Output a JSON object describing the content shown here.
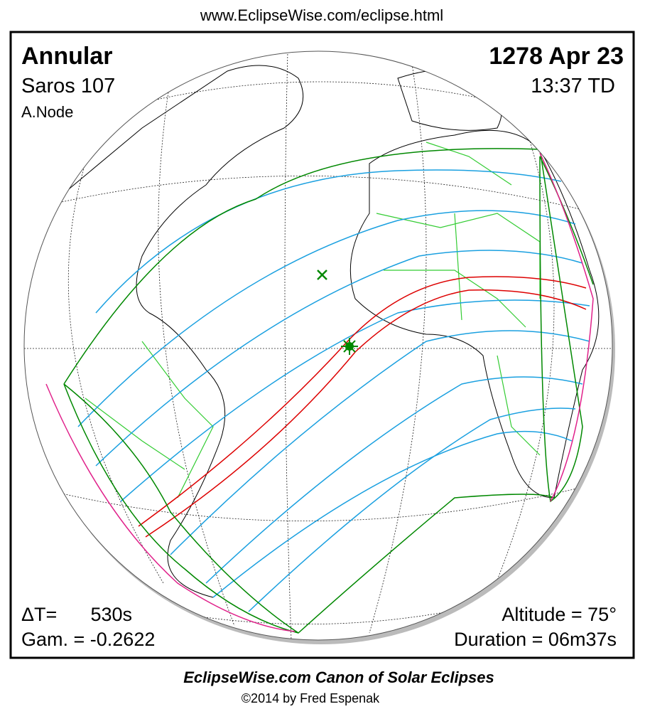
{
  "header": {
    "url": "www.EclipseWise.com/eclipse.html"
  },
  "info": {
    "eclipse_type": "Annular",
    "saros": "Saros 107",
    "node": "A.Node",
    "date": "1278 Apr 23",
    "time": "13:37 TD",
    "delta_t": {
      "label": "ΔT=",
      "value": "530s"
    },
    "gamma": "Gam. = -0.2622",
    "altitude": "Altitude = 75°",
    "duration": "Duration = 06m37s"
  },
  "footer": {
    "title": "EclipseWise.com Canon of Solar Eclipses",
    "credit": "©2014 by Fred Espenak"
  }
}
